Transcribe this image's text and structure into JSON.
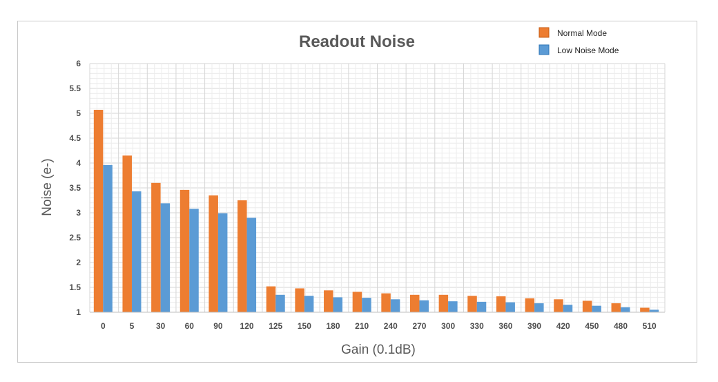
{
  "chart_data": {
    "type": "bar",
    "title": "Readout Noise",
    "xlabel": "Gain (0.1dB)",
    "ylabel": "Noise (e-)",
    "ylim": [
      1,
      6
    ],
    "yticks": [
      "1",
      "1.5",
      "2",
      "2.5",
      "3",
      "3.5",
      "4",
      "4.5",
      "5",
      "5.5",
      "6"
    ],
    "grid": true,
    "legend_position": "top-right",
    "categories": [
      "0",
      "5",
      "30",
      "60",
      "90",
      "120",
      "125",
      "150",
      "180",
      "210",
      "240",
      "270",
      "300",
      "330",
      "360",
      "390",
      "420",
      "450",
      "480",
      "510"
    ],
    "series": [
      {
        "name": "Normal Mode",
        "color": "#ed7d31",
        "values": [
          5.07,
          4.15,
          3.6,
          3.46,
          3.35,
          3.25,
          1.52,
          1.48,
          1.44,
          1.41,
          1.38,
          1.35,
          1.35,
          1.33,
          1.32,
          1.28,
          1.26,
          1.23,
          1.18,
          1.09
        ]
      },
      {
        "name": "Low Noise Mode",
        "color": "#5b9bd5",
        "values": [
          3.96,
          3.43,
          3.19,
          3.08,
          2.99,
          2.9,
          1.35,
          1.33,
          1.3,
          1.29,
          1.26,
          1.24,
          1.22,
          1.21,
          1.2,
          1.18,
          1.15,
          1.13,
          1.1,
          1.05
        ]
      }
    ]
  }
}
